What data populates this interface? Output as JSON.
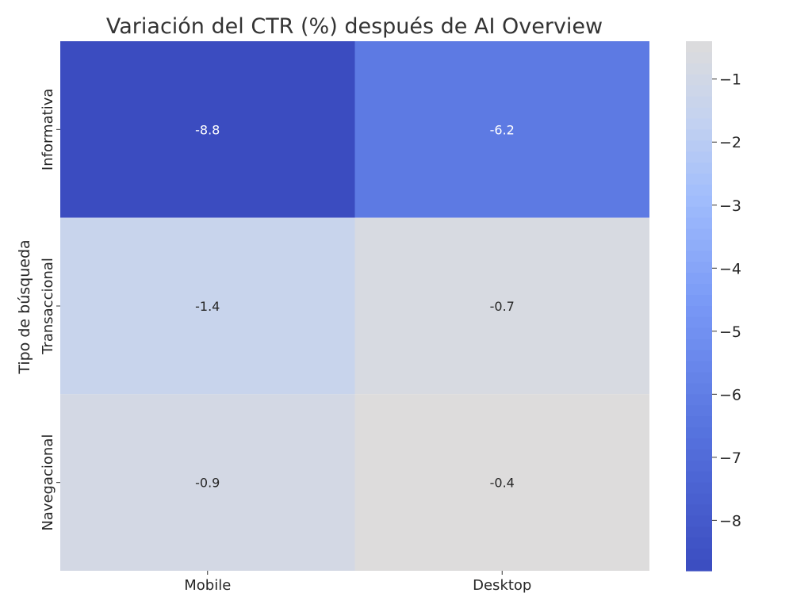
{
  "chart_data": {
    "type": "heatmap",
    "title": "Variación del CTR (%) después de AI Overview",
    "xlabel": "",
    "ylabel": "Tipo de búsqueda",
    "x_categories": [
      "Mobile",
      "Desktop"
    ],
    "y_categories": [
      "Informativa",
      "Transaccional",
      "Navegacional"
    ],
    "values": [
      [
        -8.8,
        -6.2
      ],
      [
        -1.4,
        -0.7
      ],
      [
        -0.9,
        -0.4
      ]
    ],
    "colorbar": {
      "range": [
        -8.8,
        -0.4
      ],
      "ticks": [
        -1,
        -2,
        -3,
        -4,
        -5,
        -6,
        -7,
        -8
      ],
      "tick_labels": [
        "−1",
        "−2",
        "−3",
        "−4",
        "−5",
        "−6",
        "−7",
        "−8"
      ]
    },
    "colors": {
      "low": "#3b4cc0",
      "mid": "#6a8bef",
      "high": "#dddcdc"
    }
  }
}
